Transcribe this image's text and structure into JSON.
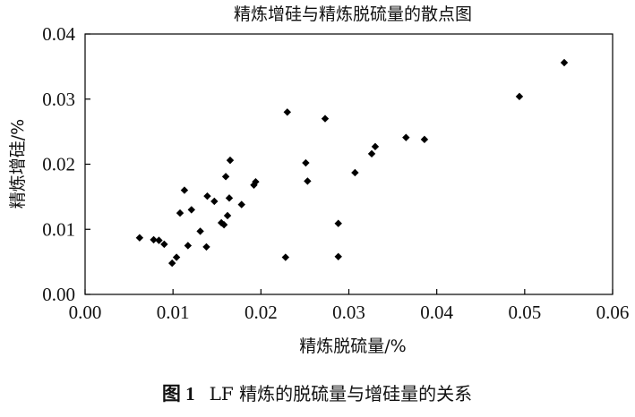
{
  "chart_data": {
    "type": "scatter",
    "title": "精炼增硅与精炼脱硫量的散点图",
    "xlabel": "精炼脱硫量/%",
    "ylabel": "精炼增硅/%",
    "xlim": [
      0,
      0.06
    ],
    "ylim": [
      0,
      0.04
    ],
    "xticks": [
      "0.00",
      "0.01",
      "0.02",
      "0.03",
      "0.04",
      "0.05",
      "0.06"
    ],
    "yticks": [
      "0.00",
      "0.01",
      "0.02",
      "0.03",
      "0.04"
    ],
    "grid": false,
    "marker": "diamond",
    "marker_color": "#000000",
    "points": [
      {
        "x": 0.0062,
        "y": 0.0087
      },
      {
        "x": 0.0078,
        "y": 0.0084
      },
      {
        "x": 0.0084,
        "y": 0.0083
      },
      {
        "x": 0.009,
        "y": 0.0077
      },
      {
        "x": 0.0099,
        "y": 0.0048
      },
      {
        "x": 0.0104,
        "y": 0.0057
      },
      {
        "x": 0.0108,
        "y": 0.0125
      },
      {
        "x": 0.0113,
        "y": 0.016
      },
      {
        "x": 0.0117,
        "y": 0.0075
      },
      {
        "x": 0.0121,
        "y": 0.013
      },
      {
        "x": 0.0131,
        "y": 0.0097
      },
      {
        "x": 0.0138,
        "y": 0.0073
      },
      {
        "x": 0.0139,
        "y": 0.0151
      },
      {
        "x": 0.0147,
        "y": 0.0143
      },
      {
        "x": 0.0155,
        "y": 0.011
      },
      {
        "x": 0.0158,
        "y": 0.0107
      },
      {
        "x": 0.016,
        "y": 0.0181
      },
      {
        "x": 0.0162,
        "y": 0.0121
      },
      {
        "x": 0.0164,
        "y": 0.0148
      },
      {
        "x": 0.0165,
        "y": 0.0206
      },
      {
        "x": 0.0178,
        "y": 0.0138
      },
      {
        "x": 0.0192,
        "y": 0.0168
      },
      {
        "x": 0.0194,
        "y": 0.0173
      },
      {
        "x": 0.0228,
        "y": 0.0057
      },
      {
        "x": 0.023,
        "y": 0.028
      },
      {
        "x": 0.0251,
        "y": 0.0202
      },
      {
        "x": 0.0253,
        "y": 0.0174
      },
      {
        "x": 0.0273,
        "y": 0.027
      },
      {
        "x": 0.0288,
        "y": 0.0109
      },
      {
        "x": 0.0288,
        "y": 0.0058
      },
      {
        "x": 0.0307,
        "y": 0.0187
      },
      {
        "x": 0.0326,
        "y": 0.0216
      },
      {
        "x": 0.033,
        "y": 0.0227
      },
      {
        "x": 0.0365,
        "y": 0.0241
      },
      {
        "x": 0.0386,
        "y": 0.0238
      },
      {
        "x": 0.0494,
        "y": 0.0304
      },
      {
        "x": 0.0545,
        "y": 0.0356
      }
    ]
  },
  "caption": {
    "number": "图 1",
    "text": "LF 精炼的脱硫量与增硅量的关系"
  }
}
